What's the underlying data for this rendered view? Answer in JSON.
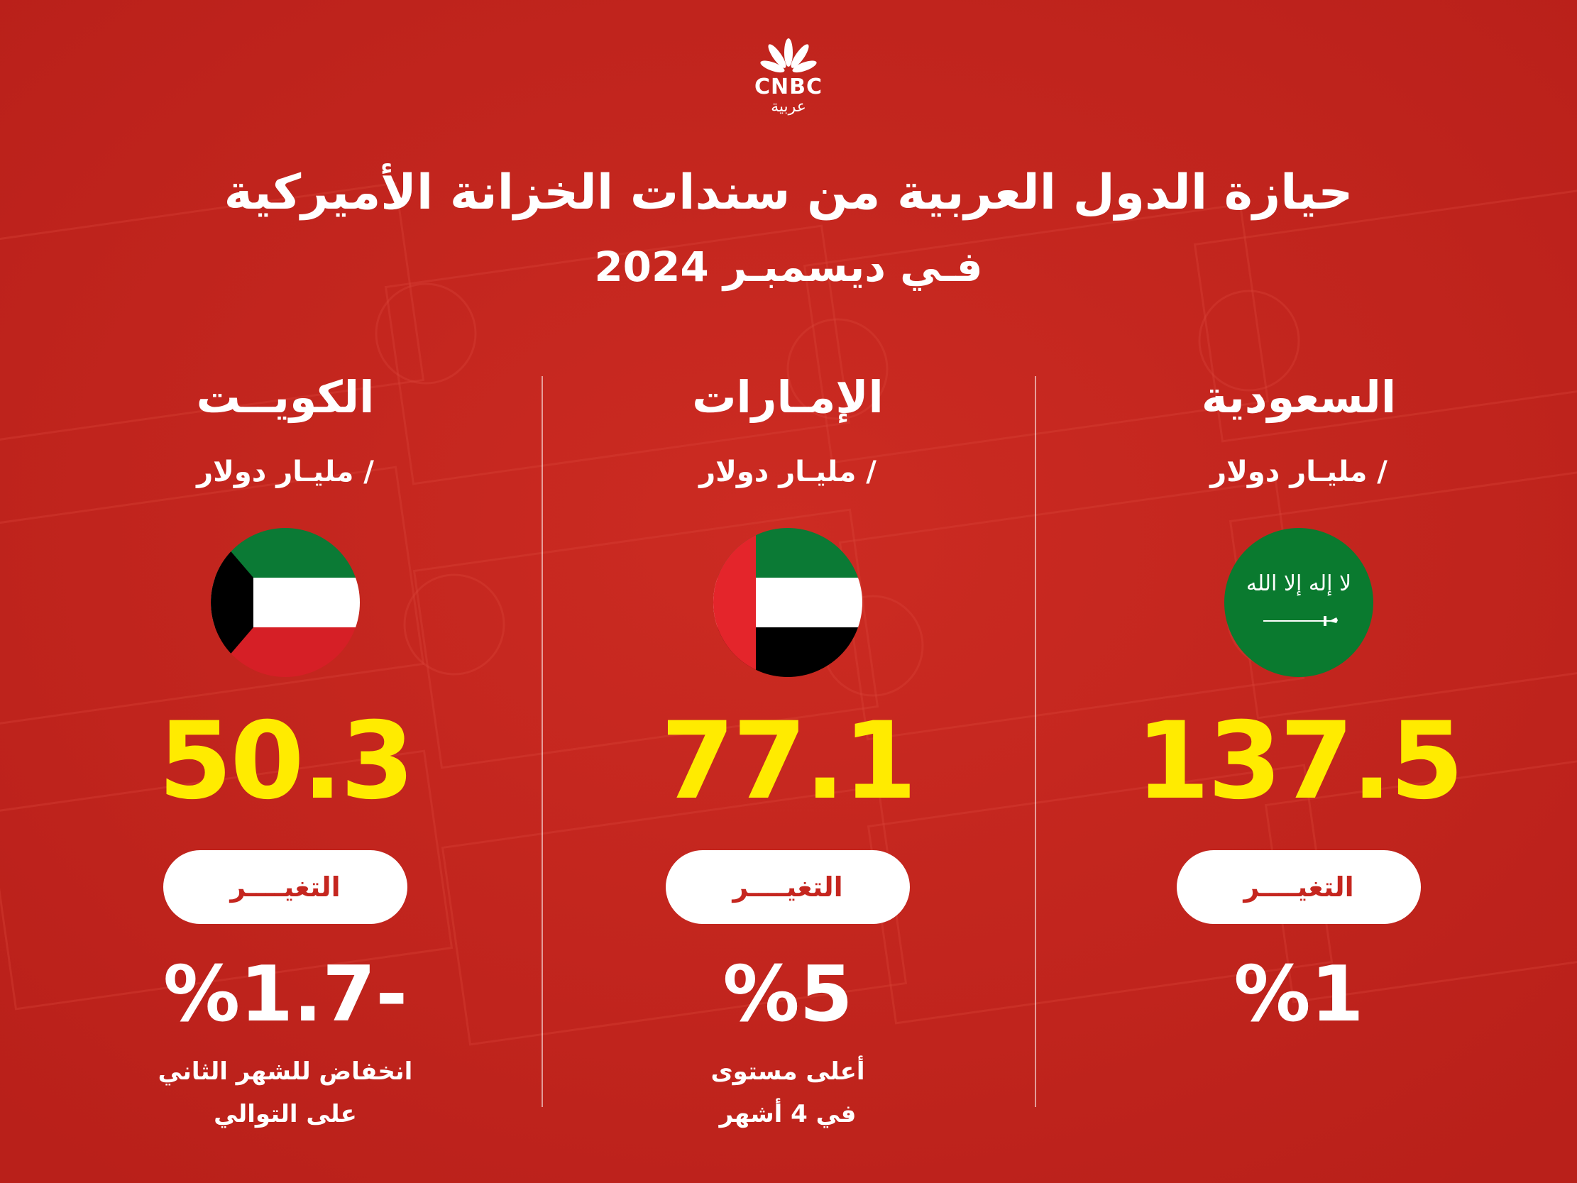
{
  "brand": {
    "logo_icon": "peacock-icon",
    "logo_text": "CNBC",
    "logo_sub": "عربية"
  },
  "title": {
    "line1": "حيازة الدول العربية من سندات الخزانة الأميركية",
    "line2": "فـي ديسمبـر 2024"
  },
  "colors": {
    "background": "#c5261f",
    "value": "#ffeb00",
    "pill_text": "#c5261f"
  },
  "countries": [
    {
      "name": "السعودية",
      "unit": "/ مليـار دولار",
      "flag_icon": "saudi-flag-icon",
      "value": "137.5",
      "change_label": "التغيــــر",
      "change": "%1",
      "note_line1": "",
      "note_line2": ""
    },
    {
      "name": "الإمـارات",
      "unit": "/ مليـار دولار",
      "flag_icon": "uae-flag-icon",
      "value": "77.1",
      "change_label": "التغيــــر",
      "change": "%5",
      "note_line1": "أعلى مستوى",
      "note_line2": "في 4 أشهر"
    },
    {
      "name": "الكويــت",
      "unit": "/ مليـار دولار",
      "flag_icon": "kuwait-flag-icon",
      "value": "50.3",
      "change_label": "التغيــــر",
      "change": "%1.7-",
      "note_line1": "انخفاض للشهر الثاني",
      "note_line2": "على التوالي"
    }
  ]
}
